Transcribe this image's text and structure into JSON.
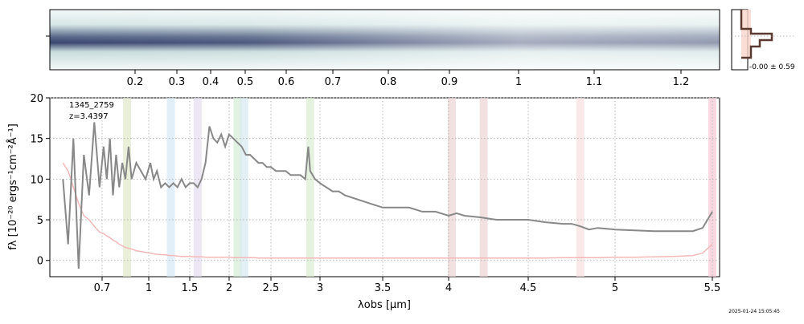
{
  "chart_data": {
    "type": "line",
    "annotations": [
      "1345_2759",
      "z=3.4397"
    ],
    "x_label": "λobs [μm]",
    "y_label": "fλ [10⁻²⁰ ergs⁻¹cm⁻²Å⁻¹]",
    "xlim": [
      0.5,
      5.54
    ],
    "ylim": [
      -2,
      20
    ],
    "xticks": [
      0.7,
      1.0,
      1.5,
      2.0,
      2.5,
      3.0,
      3.5,
      4.0,
      4.5,
      5.0,
      5.5
    ],
    "yticks": [
      0,
      5,
      10,
      15,
      20
    ],
    "grid": true,
    "x": [
      0.55,
      0.57,
      0.59,
      0.61,
      0.63,
      0.65,
      0.67,
      0.69,
      0.71,
      0.73,
      0.75,
      0.77,
      0.79,
      0.81,
      0.83,
      0.85,
      0.87,
      0.89,
      0.92,
      0.95,
      0.98,
      1.02,
      1.06,
      1.1,
      1.15,
      1.2,
      1.25,
      1.3,
      1.35,
      1.4,
      1.45,
      1.5,
      1.55,
      1.6,
      1.65,
      1.7,
      1.75,
      1.8,
      1.85,
      1.9,
      1.95,
      2.0,
      2.05,
      2.1,
      2.15,
      2.2,
      2.25,
      2.3,
      2.35,
      2.4,
      2.45,
      2.5,
      2.55,
      2.6,
      2.65,
      2.7,
      2.75,
      2.8,
      2.85,
      2.88,
      2.9,
      2.95,
      3.0,
      3.05,
      3.1,
      3.15,
      3.2,
      3.3,
      3.4,
      3.5,
      3.6,
      3.7,
      3.8,
      3.9,
      4.0,
      4.05,
      4.1,
      4.2,
      4.3,
      4.4,
      4.5,
      4.6,
      4.7,
      4.75,
      4.8,
      4.85,
      4.9,
      5.0,
      5.1,
      5.2,
      5.3,
      5.4,
      5.45,
      5.5
    ],
    "series": [
      {
        "color": "#888888",
        "values": [
          10,
          2,
          15,
          -1,
          13,
          8,
          17,
          9,
          14,
          10,
          15,
          8,
          13,
          9,
          12,
          10,
          14,
          10,
          12,
          11,
          10,
          12,
          10,
          11,
          9,
          9.5,
          9,
          9.5,
          9,
          10,
          9,
          9.5,
          9.5,
          9,
          10,
          12,
          16.5,
          15,
          14.5,
          15.5,
          14,
          15.5,
          15,
          14.5,
          14,
          13,
          13,
          12.5,
          12,
          12,
          11.5,
          11.5,
          11,
          11,
          11,
          10.5,
          10.5,
          10.5,
          10,
          14,
          11,
          10,
          9.5,
          9,
          8.5,
          8.5,
          8,
          7.5,
          7,
          6.5,
          6.5,
          6.5,
          6,
          6,
          5.5,
          5.8,
          5.5,
          5.3,
          5,
          5,
          5,
          4.7,
          4.5,
          4.5,
          4.2,
          3.8,
          4,
          3.8,
          3.7,
          3.6,
          3.6,
          3.6,
          4,
          6
        ]
      },
      {
        "color": "#f4b8b8",
        "values": [
          12,
          11,
          9,
          7,
          5.5,
          5,
          4.2,
          3.5,
          3.3,
          3,
          2.8,
          2.5,
          2.3,
          2,
          1.8,
          1.6,
          1.5,
          1.4,
          1.2,
          1.1,
          1,
          0.9,
          0.8,
          0.75,
          0.7,
          0.7,
          0.6,
          0.6,
          0.55,
          0.5,
          0.5,
          0.5,
          0.45,
          0.45,
          0.45,
          0.4,
          0.4,
          0.4,
          0.4,
          0.4,
          0.4,
          0.4,
          0.35,
          0.35,
          0.35,
          0.35,
          0.35,
          0.35,
          0.3,
          0.3,
          0.3,
          0.3,
          0.3,
          0.3,
          0.3,
          0.3,
          0.3,
          0.3,
          0.3,
          0.3,
          0.3,
          0.3,
          0.3,
          0.3,
          0.3,
          0.3,
          0.3,
          0.3,
          0.3,
          0.3,
          0.3,
          0.3,
          0.3,
          0.3,
          0.3,
          0.3,
          0.3,
          0.3,
          0.3,
          0.3,
          0.3,
          0.3,
          0.35,
          0.35,
          0.35,
          0.35,
          0.35,
          0.4,
          0.4,
          0.45,
          0.5,
          0.6,
          0.9,
          2
        ]
      }
    ],
    "bands": [
      {
        "x": 0.86,
        "color": "#dfe8c8"
      },
      {
        "x": 1.27,
        "color": "#d6e8f6"
      },
      {
        "x": 1.6,
        "color": "#e6dcf0"
      },
      {
        "x": 2.1,
        "color": "#d6ecd6"
      },
      {
        "x": 2.18,
        "color": "#d6e8f0"
      },
      {
        "x": 2.9,
        "color": "#d8ecd2"
      },
      {
        "x": 4.02,
        "color": "#ecd4d4"
      },
      {
        "x": 4.22,
        "color": "#ecd4d4"
      },
      {
        "x": 4.8,
        "color": "#f8e0e0"
      },
      {
        "x": 5.5,
        "color": "#f6c8d4"
      }
    ]
  },
  "spectrum_2d": {
    "xticks": [
      0.2,
      0.3,
      0.4,
      0.5,
      0.6,
      0.7,
      0.8,
      0.9,
      1.0,
      1.1,
      1.2
    ]
  },
  "profile": {
    "label": "-0.00 ± 0.59"
  },
  "timestamp": "2025-01-24 15:05:45"
}
